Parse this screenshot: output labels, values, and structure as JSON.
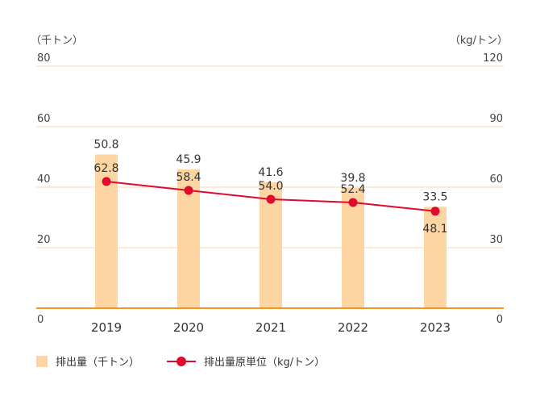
{
  "chart_data": {
    "type": "bar+line",
    "categories": [
      "2019",
      "2020",
      "2021",
      "2022",
      "2023"
    ],
    "left_axis": {
      "unit": "（千トン）",
      "ticks": [
        "0",
        "20",
        "40",
        "60",
        "80"
      ],
      "ylim": [
        0,
        80
      ]
    },
    "right_axis": {
      "unit": "（kg/トン）",
      "ticks": [
        "0",
        "30",
        "60",
        "90",
        "120"
      ],
      "ylim": [
        0,
        120
      ]
    },
    "series": [
      {
        "name": "排出量（千トン）",
        "type": "bar",
        "axis": "left",
        "values": [
          50.8,
          45.9,
          41.6,
          39.8,
          33.5
        ],
        "labels": [
          "50.8",
          "45.9",
          "41.6",
          "39.8",
          "33.5"
        ]
      },
      {
        "name": "排出量原単位（kg/トン）",
        "type": "line",
        "axis": "right",
        "values": [
          62.8,
          58.4,
          54.0,
          52.4,
          48.1
        ],
        "labels": [
          "62.8",
          "58.4",
          "54.0",
          "52.4",
          "48.1"
        ]
      }
    ],
    "grid": true,
    "legend_position": "bottom-left"
  },
  "colors": {
    "bar": "#FDD5A3",
    "line": "#DF0A2C",
    "grid": "#FBE6C9",
    "baseline": "#F0962A"
  }
}
